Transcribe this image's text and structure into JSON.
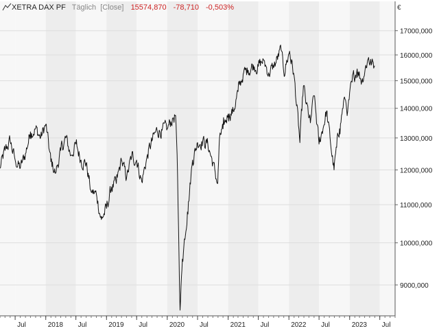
{
  "header": {
    "icon": "line-chart-icon",
    "symbol": "XETRA DAX PF",
    "interval": "Täglich",
    "mode": "[Close]",
    "last": "15574,870",
    "change": "-78,710",
    "change_pct": "-0,503%"
  },
  "currency": "€",
  "colors": {
    "line": "#111111",
    "negative": "#cc2222",
    "muted": "#888888",
    "band_light": "#f7f7f7",
    "band_dark": "#ededed",
    "grid": "#dddddd"
  },
  "chart_data": {
    "type": "line",
    "title": "XETRA DAX PF",
    "y_scale": "log",
    "ylim": [
      8400,
      16500
    ],
    "xlim": [
      "2017-04-01",
      "2023-10-01"
    ],
    "y_ticks": [
      {
        "value": 9000,
        "label": "9000,000"
      },
      {
        "value": 10000,
        "label": "10000,000"
      },
      {
        "value": 11000,
        "label": "11000,000"
      },
      {
        "value": 12000,
        "label": "12000,000"
      },
      {
        "value": 13000,
        "label": "13000,000"
      },
      {
        "value": 14000,
        "label": "14000,000"
      },
      {
        "value": 15000,
        "label": "15000,000"
      },
      {
        "value": 16000,
        "label": "16000,000"
      },
      {
        "value": 17000,
        "label": "17000,000"
      }
    ],
    "x_ticks": [
      {
        "date": "2017-07-01",
        "label": "Jul"
      },
      {
        "date": "2018-01-01",
        "label": "2018"
      },
      {
        "date": "2018-07-01",
        "label": "Jul"
      },
      {
        "date": "2019-01-01",
        "label": "2019"
      },
      {
        "date": "2019-07-01",
        "label": "Jul"
      },
      {
        "date": "2020-01-01",
        "label": "2020"
      },
      {
        "date": "2020-07-01",
        "label": "Jul"
      },
      {
        "date": "2021-01-01",
        "label": "2021"
      },
      {
        "date": "2021-07-01",
        "label": "Jul"
      },
      {
        "date": "2022-01-01",
        "label": "2022"
      },
      {
        "date": "2022-07-01",
        "label": "Jul"
      },
      {
        "date": "2023-01-01",
        "label": "2023"
      },
      {
        "date": "2023-07-01",
        "label": "Jul"
      }
    ],
    "series": [
      {
        "points": [
          [
            "2017-04-01",
            12050
          ],
          [
            "2017-05-01",
            12600
          ],
          [
            "2017-06-01",
            12900
          ],
          [
            "2017-07-01",
            12300
          ],
          [
            "2017-08-01",
            12050
          ],
          [
            "2017-09-01",
            12500
          ],
          [
            "2017-10-01",
            13200
          ],
          [
            "2017-11-01",
            13300
          ],
          [
            "2017-12-01",
            13000
          ],
          [
            "2018-01-01",
            13450
          ],
          [
            "2018-02-01",
            12250
          ],
          [
            "2018-03-01",
            11900
          ],
          [
            "2018-04-01",
            12600
          ],
          [
            "2018-05-01",
            13000
          ],
          [
            "2018-06-01",
            12450
          ],
          [
            "2018-07-01",
            12800
          ],
          [
            "2018-08-01",
            12300
          ],
          [
            "2018-09-01",
            12200
          ],
          [
            "2018-10-01",
            11350
          ],
          [
            "2018-11-01",
            11300
          ],
          [
            "2018-12-01",
            10600
          ],
          [
            "2019-01-01",
            10900
          ],
          [
            "2019-02-01",
            11500
          ],
          [
            "2019-03-01",
            11600
          ],
          [
            "2019-04-01",
            12300
          ],
          [
            "2019-05-01",
            11750
          ],
          [
            "2019-06-01",
            12400
          ],
          [
            "2019-07-01",
            12300
          ],
          [
            "2019-08-01",
            11650
          ],
          [
            "2019-09-01",
            12400
          ],
          [
            "2019-10-01",
            12900
          ],
          [
            "2019-11-01",
            13250
          ],
          [
            "2019-12-01",
            13250
          ],
          [
            "2020-01-01",
            13300
          ],
          [
            "2020-02-01",
            13650
          ],
          [
            "2020-02-20",
            13750
          ],
          [
            "2020-03-03",
            11800
          ],
          [
            "2020-03-18",
            8450
          ],
          [
            "2020-04-01",
            9600
          ],
          [
            "2020-05-01",
            10800
          ],
          [
            "2020-06-01",
            12300
          ],
          [
            "2020-07-01",
            12850
          ],
          [
            "2020-08-01",
            12900
          ],
          [
            "2020-09-01",
            12800
          ],
          [
            "2020-10-01",
            12200
          ],
          [
            "2020-10-30",
            11600
          ],
          [
            "2020-11-10",
            13000
          ],
          [
            "2020-12-01",
            13300
          ],
          [
            "2021-01-01",
            13800
          ],
          [
            "2021-02-01",
            13900
          ],
          [
            "2021-03-01",
            14600
          ],
          [
            "2021-04-01",
            15250
          ],
          [
            "2021-05-01",
            15400
          ],
          [
            "2021-06-01",
            15600
          ],
          [
            "2021-07-01",
            15550
          ],
          [
            "2021-08-01",
            15800
          ],
          [
            "2021-09-01",
            15300
          ],
          [
            "2021-10-01",
            15500
          ],
          [
            "2021-11-15",
            16200
          ],
          [
            "2021-12-01",
            15300
          ],
          [
            "2022-01-05",
            16150
          ],
          [
            "2022-02-01",
            15200
          ],
          [
            "2022-03-08",
            12850
          ],
          [
            "2022-03-29",
            14800
          ],
          [
            "2022-04-15",
            14150
          ],
          [
            "2022-05-10",
            13500
          ],
          [
            "2022-06-01",
            14450
          ],
          [
            "2022-07-01",
            12800
          ],
          [
            "2022-08-15",
            13900
          ],
          [
            "2022-09-29",
            12000
          ],
          [
            "2022-10-15",
            12700
          ],
          [
            "2022-11-01",
            13300
          ],
          [
            "2022-12-01",
            14400
          ],
          [
            "2022-12-20",
            13900
          ],
          [
            "2023-01-15",
            14950
          ],
          [
            "2023-02-15",
            15450
          ],
          [
            "2023-03-15",
            15000
          ],
          [
            "2023-04-05",
            15500
          ],
          [
            "2023-04-25",
            15900
          ],
          [
            "2023-05-05",
            15700
          ],
          [
            "2023-05-31",
            15574.87
          ]
        ]
      }
    ]
  }
}
